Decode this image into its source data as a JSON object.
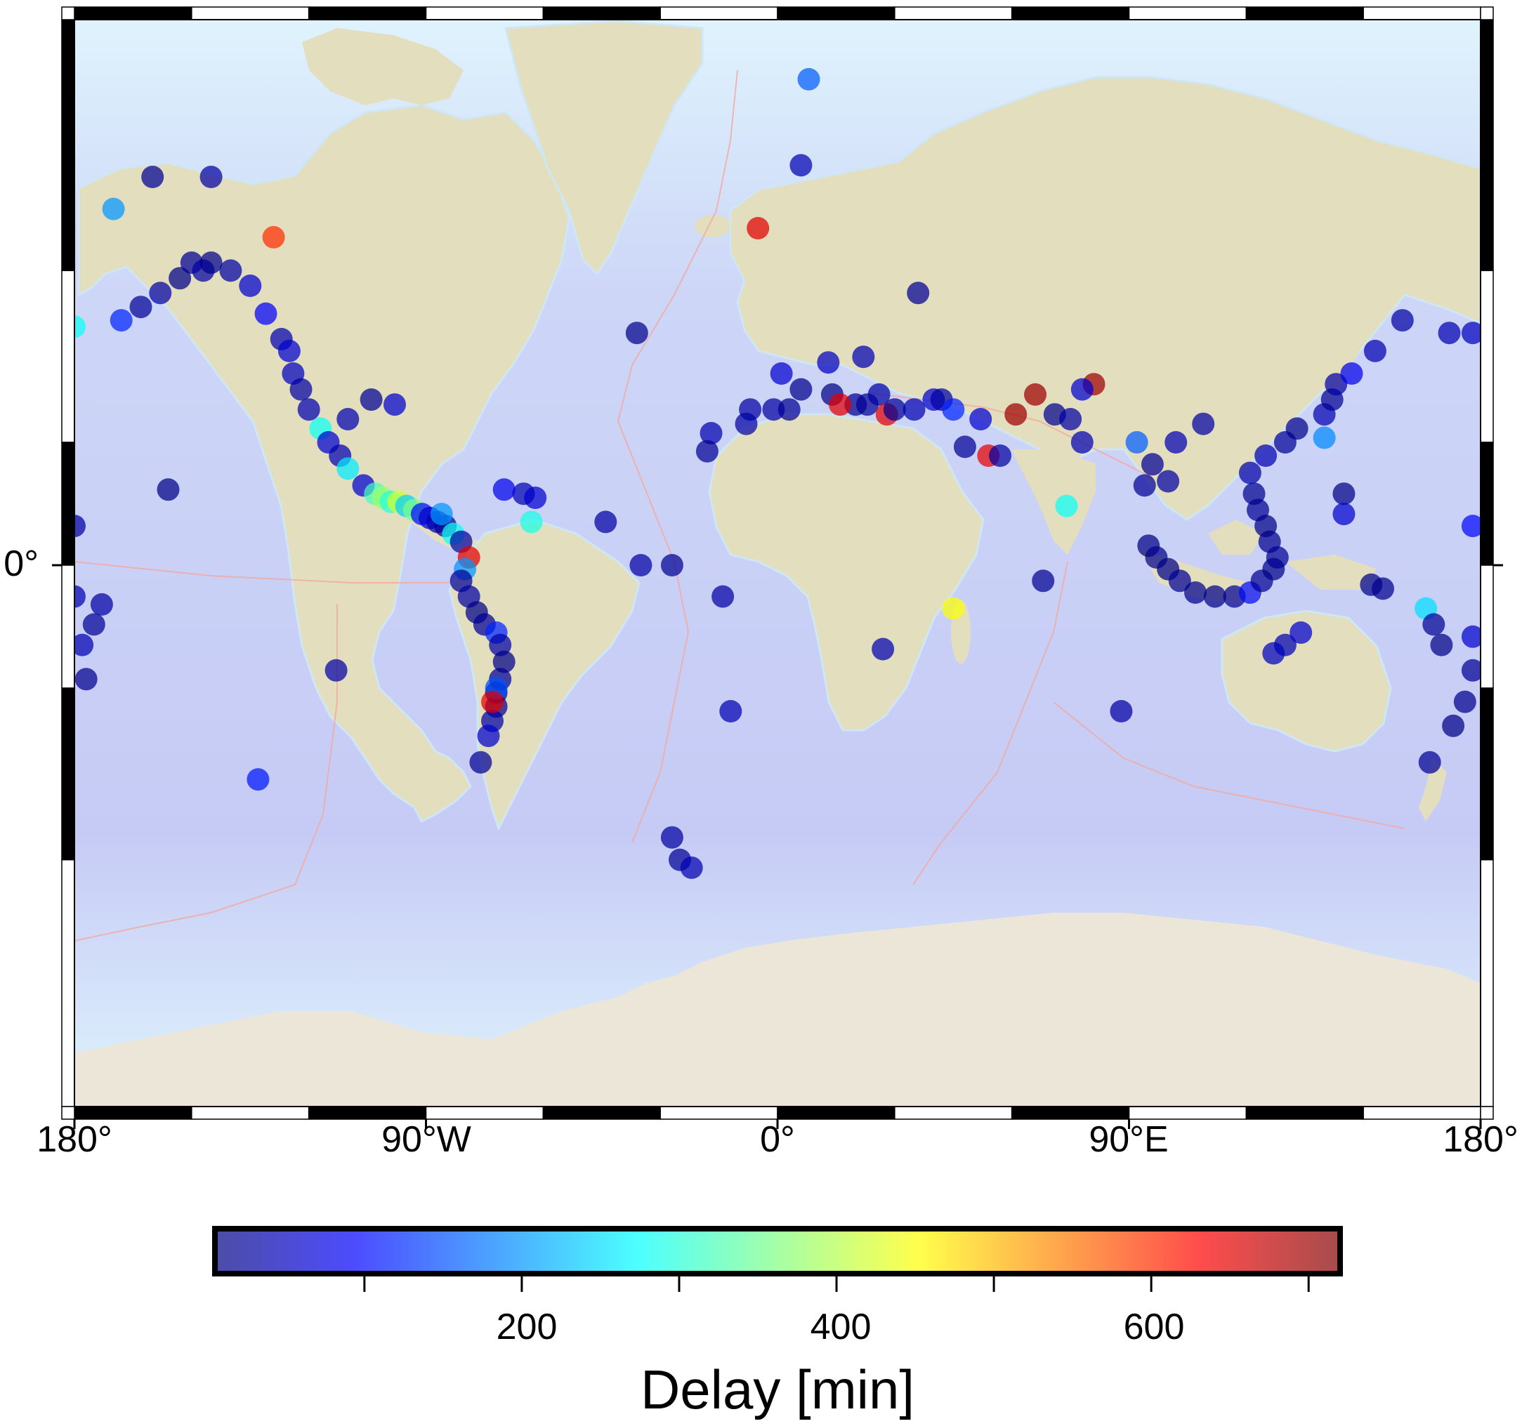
{
  "map": {
    "projection": "mercator",
    "lon_range": [
      -180,
      180
    ],
    "x_tick_labels": [
      "180°",
      "90°W",
      "0°",
      "90°E",
      "180°"
    ],
    "y_tick_labels": [
      "0°"
    ],
    "colors": {
      "ocean": "#c9cdf5",
      "shelf": "#d8eefb",
      "land": "#e3dfbe",
      "antarctica": "#ece6d8",
      "plate_boundary": "#f2a9a0",
      "frame": "#000000"
    }
  },
  "colorbar": {
    "title": "Delay [min]",
    "range": [
      5,
      720
    ],
    "labeled_ticks": [
      "200",
      "400",
      "600"
    ],
    "labeled_values": [
      200,
      400,
      600
    ],
    "minor_values": [
      100,
      300,
      500,
      700
    ],
    "cmap": "jet",
    "colors": [
      "#00007f",
      "#0000ff",
      "#007fff",
      "#00ffff",
      "#7fff7f",
      "#ffff00",
      "#ff7f00",
      "#ff0000",
      "#7f0000"
    ]
  },
  "chart_data": {
    "type": "scatter",
    "title": "",
    "x_unit": "longitude (degrees)",
    "y_unit": "latitude (degrees)",
    "color_value": "Delay [min]",
    "points": [
      {
        "lon": -168,
        "lat": 53,
        "delay": 120
      },
      {
        "lon": -163,
        "lat": 55,
        "delay": 20
      },
      {
        "lon": -158,
        "lat": 57,
        "delay": 30
      },
      {
        "lon": -153,
        "lat": 59,
        "delay": 10
      },
      {
        "lon": -150,
        "lat": 61,
        "delay": 20
      },
      {
        "lon": -147,
        "lat": 60,
        "delay": 30
      },
      {
        "lon": -145,
        "lat": 61,
        "delay": 15
      },
      {
        "lon": -140,
        "lat": 60,
        "delay": 30
      },
      {
        "lon": -135,
        "lat": 58,
        "delay": 60
      },
      {
        "lon": -131,
        "lat": 54,
        "delay": 90
      },
      {
        "lon": -127,
        "lat": 50,
        "delay": 40
      },
      {
        "lon": -125,
        "lat": 48,
        "delay": 60
      },
      {
        "lon": -124,
        "lat": 44,
        "delay": 50
      },
      {
        "lon": -122,
        "lat": 41,
        "delay": 30
      },
      {
        "lon": -120,
        "lat": 37,
        "delay": 40
      },
      {
        "lon": -117,
        "lat": 33,
        "delay": 280
      },
      {
        "lon": -115,
        "lat": 30,
        "delay": 60
      },
      {
        "lon": -112,
        "lat": 27,
        "delay": 40
      },
      {
        "lon": -110,
        "lat": 24,
        "delay": 260
      },
      {
        "lon": -106,
        "lat": 20,
        "delay": 60
      },
      {
        "lon": -103,
        "lat": 18,
        "delay": 320
      },
      {
        "lon": -101,
        "lat": 17,
        "delay": 380
      },
      {
        "lon": -99,
        "lat": 16,
        "delay": 300
      },
      {
        "lon": -97,
        "lat": 16,
        "delay": 420
      },
      {
        "lon": -95,
        "lat": 15,
        "delay": 240
      },
      {
        "lon": -93,
        "lat": 14,
        "delay": 360
      },
      {
        "lon": -91,
        "lat": 13,
        "delay": 100
      },
      {
        "lon": -89,
        "lat": 12,
        "delay": 60
      },
      {
        "lon": -87,
        "lat": 11,
        "delay": 40
      },
      {
        "lon": -85,
        "lat": 10,
        "delay": 20
      },
      {
        "lon": -83,
        "lat": 8,
        "delay": 280
      },
      {
        "lon": -81,
        "lat": 6,
        "delay": 30
      },
      {
        "lon": -79,
        "lat": 2,
        "delay": 650
      },
      {
        "lon": -80,
        "lat": -1,
        "delay": 200
      },
      {
        "lon": -81,
        "lat": -4,
        "delay": 20
      },
      {
        "lon": -79,
        "lat": -8,
        "delay": 30
      },
      {
        "lon": -77,
        "lat": -12,
        "delay": 10
      },
      {
        "lon": -75,
        "lat": -15,
        "delay": 20
      },
      {
        "lon": -72,
        "lat": -17,
        "delay": 120
      },
      {
        "lon": -71,
        "lat": -20,
        "delay": 30
      },
      {
        "lon": -70,
        "lat": -24,
        "delay": 10
      },
      {
        "lon": -71,
        "lat": -28,
        "delay": 20
      },
      {
        "lon": -72,
        "lat": -31,
        "delay": 15
      },
      {
        "lon": -72,
        "lat": -34,
        "delay": 20
      },
      {
        "lon": -73,
        "lat": -37,
        "delay": 30
      },
      {
        "lon": -74,
        "lat": -40,
        "delay": 60
      },
      {
        "lon": -76,
        "lat": -45,
        "delay": 20
      },
      {
        "lon": -113,
        "lat": -26,
        "delay": 30
      },
      {
        "lon": -133,
        "lat": -48,
        "delay": 110
      },
      {
        "lon": -156,
        "lat": 19,
        "delay": 10
      },
      {
        "lon": -110,
        "lat": 35,
        "delay": 40
      },
      {
        "lon": -98,
        "lat": 38,
        "delay": 60
      },
      {
        "lon": -104,
        "lat": 39,
        "delay": 20
      },
      {
        "lon": -65,
        "lat": 18,
        "delay": 40
      },
      {
        "lon": -62,
        "lat": 17,
        "delay": 60
      },
      {
        "lon": -70,
        "lat": 19,
        "delay": 80
      },
      {
        "lon": -63,
        "lat": 11,
        "delay": 290
      },
      {
        "lon": -44,
        "lat": 11,
        "delay": 30
      },
      {
        "lon": -35,
        "lat": 0,
        "delay": 30
      },
      {
        "lon": -27,
        "lat": 0,
        "delay": 20
      },
      {
        "lon": -14,
        "lat": -8,
        "delay": 30
      },
      {
        "lon": -12,
        "lat": -35,
        "delay": 40
      },
      {
        "lon": -27,
        "lat": -57,
        "delay": 30
      },
      {
        "lon": -25,
        "lat": -60,
        "delay": 20
      },
      {
        "lon": -22,
        "lat": -61,
        "delay": 40
      },
      {
        "lon": -36,
        "lat": 51,
        "delay": 15
      },
      {
        "lon": -5,
        "lat": 65,
        "delay": 650
      },
      {
        "lon": 6,
        "lat": 71,
        "delay": 40
      },
      {
        "lon": 8,
        "lat": 77,
        "delay": 160
      },
      {
        "lon": -170,
        "lat": 67,
        "delay": 200
      },
      {
        "lon": -180,
        "lat": 52,
        "delay": 280
      },
      {
        "lon": -160,
        "lat": 70,
        "delay": 20
      },
      {
        "lon": -145,
        "lat": 70,
        "delay": 30
      },
      {
        "lon": -129,
        "lat": 64,
        "delay": 600
      },
      {
        "lon": -1,
        "lat": 37,
        "delay": 30
      },
      {
        "lon": 3,
        "lat": 37,
        "delay": 20
      },
      {
        "lon": 6,
        "lat": 41,
        "delay": 15
      },
      {
        "lon": 14,
        "lat": 40,
        "delay": 10
      },
      {
        "lon": 20,
        "lat": 38,
        "delay": 15
      },
      {
        "lon": 23,
        "lat": 38,
        "delay": 20
      },
      {
        "lon": 26,
        "lat": 40,
        "delay": 30
      },
      {
        "lon": 28,
        "lat": 36,
        "delay": 650
      },
      {
        "lon": 30,
        "lat": 37,
        "delay": 20
      },
      {
        "lon": 35,
        "lat": 37,
        "delay": 40
      },
      {
        "lon": 40,
        "lat": 39,
        "delay": 60
      },
      {
        "lon": 42,
        "lat": 39,
        "delay": 30
      },
      {
        "lon": 45,
        "lat": 37,
        "delay": 120
      },
      {
        "lon": 48,
        "lat": 29,
        "delay": 20
      },
      {
        "lon": 54,
        "lat": 27,
        "delay": 650
      },
      {
        "lon": 57,
        "lat": 27,
        "delay": 30
      },
      {
        "lon": 71,
        "lat": 36,
        "delay": 15
      },
      {
        "lon": 75,
        "lat": 35,
        "delay": 30
      },
      {
        "lon": 78,
        "lat": 30,
        "delay": 40
      },
      {
        "lon": 81,
        "lat": 42,
        "delay": 700
      },
      {
        "lon": 78,
        "lat": 41,
        "delay": 60
      },
      {
        "lon": 92,
        "lat": 30,
        "delay": 160
      },
      {
        "lon": 102,
        "lat": 30,
        "delay": 40
      },
      {
        "lon": 96,
        "lat": 25,
        "delay": 20
      },
      {
        "lon": 100,
        "lat": 21,
        "delay": 30
      },
      {
        "lon": 94,
        "lat": 20,
        "delay": 20
      },
      {
        "lon": 95,
        "lat": 5,
        "delay": 10
      },
      {
        "lon": 97,
        "lat": 2,
        "delay": 15
      },
      {
        "lon": 100,
        "lat": -1,
        "delay": 10
      },
      {
        "lon": 103,
        "lat": -4,
        "delay": 20
      },
      {
        "lon": 107,
        "lat": -7,
        "delay": 15
      },
      {
        "lon": 112,
        "lat": -8,
        "delay": 10
      },
      {
        "lon": 117,
        "lat": -8,
        "delay": 20
      },
      {
        "lon": 121,
        "lat": -7,
        "delay": 100
      },
      {
        "lon": 124,
        "lat": -4,
        "delay": 20
      },
      {
        "lon": 127,
        "lat": -1,
        "delay": 10
      },
      {
        "lon": 128,
        "lat": 2,
        "delay": 20
      },
      {
        "lon": 126,
        "lat": 6,
        "delay": 15
      },
      {
        "lon": 125,
        "lat": 10,
        "delay": 10
      },
      {
        "lon": 123,
        "lat": 14,
        "delay": 20
      },
      {
        "lon": 122,
        "lat": 18,
        "delay": 15
      },
      {
        "lon": 121,
        "lat": 23,
        "delay": 30
      },
      {
        "lon": 125,
        "lat": 27,
        "delay": 40
      },
      {
        "lon": 130,
        "lat": 30,
        "delay": 20
      },
      {
        "lon": 133,
        "lat": 33,
        "delay": 15
      },
      {
        "lon": 140,
        "lat": 36,
        "delay": 40
      },
      {
        "lon": 142,
        "lat": 39,
        "delay": 20
      },
      {
        "lon": 143,
        "lat": 42,
        "delay": 30
      },
      {
        "lon": 147,
        "lat": 44,
        "delay": 80
      },
      {
        "lon": 153,
        "lat": 48,
        "delay": 40
      },
      {
        "lon": 160,
        "lat": 53,
        "delay": 30
      },
      {
        "lon": 145,
        "lat": 18,
        "delay": 10
      },
      {
        "lon": 145,
        "lat": 13,
        "delay": 60
      },
      {
        "lon": 140,
        "lat": 31,
        "delay": 190
      },
      {
        "lon": 152,
        "lat": -5,
        "delay": 10
      },
      {
        "lon": 155,
        "lat": -6,
        "delay": 15
      },
      {
        "lon": 166,
        "lat": -11,
        "delay": 250
      },
      {
        "lon": 168,
        "lat": -15,
        "delay": 20
      },
      {
        "lon": 170,
        "lat": -20,
        "delay": 10
      },
      {
        "lon": 178,
        "lat": -18,
        "delay": 60
      },
      {
        "lon": 178,
        "lat": -26,
        "delay": 20
      },
      {
        "lon": 176,
        "lat": -33,
        "delay": 15
      },
      {
        "lon": 173,
        "lat": -38,
        "delay": 10
      },
      {
        "lon": 167,
        "lat": -45,
        "delay": 20
      },
      {
        "lon": -178,
        "lat": -20,
        "delay": 40
      },
      {
        "lon": -175,
        "lat": -15,
        "delay": 20
      },
      {
        "lon": -173,
        "lat": -10,
        "delay": 30
      },
      {
        "lon": -177,
        "lat": -28,
        "delay": 15
      },
      {
        "lon": 130,
        "lat": -20,
        "delay": 40
      },
      {
        "lon": 127,
        "lat": -22,
        "delay": 50
      },
      {
        "lon": 134,
        "lat": -17,
        "delay": 60
      },
      {
        "lon": 88,
        "lat": -35,
        "delay": 30
      },
      {
        "lon": 68,
        "lat": -4,
        "delay": 20
      },
      {
        "lon": 61,
        "lat": 36,
        "delay": 700
      },
      {
        "lon": 74,
        "lat": 15,
        "delay": 280
      },
      {
        "lon": 45,
        "lat": -11,
        "delay": 450
      },
      {
        "lon": 27,
        "lat": -21,
        "delay": 40
      },
      {
        "lon": 36,
        "lat": 57,
        "delay": 20
      },
      {
        "lon": 22,
        "lat": 47,
        "delay": 40
      },
      {
        "lon": 13,
        "lat": 46,
        "delay": 50
      },
      {
        "lon": 1,
        "lat": 44,
        "delay": 60
      },
      {
        "lon": -7,
        "lat": 37,
        "delay": 30
      },
      {
        "lon": -17,
        "lat": 32,
        "delay": 40
      },
      {
        "lon": -18,
        "lat": 28,
        "delay": 20
      },
      {
        "lon": -8,
        "lat": 34,
        "delay": 30
      },
      {
        "lon": 16,
        "lat": 38,
        "delay": 650
      },
      {
        "lon": 52,
        "lat": 35,
        "delay": 60
      },
      {
        "lon": 66,
        "lat": 40,
        "delay": 700
      },
      {
        "lon": 178,
        "lat": 51,
        "delay": 50
      },
      {
        "lon": 172,
        "lat": 51,
        "delay": 40
      },
      {
        "lon": 109,
        "lat": 34,
        "delay": 30
      },
      {
        "lon": -180,
        "lat": -8,
        "delay": 40
      },
      {
        "lon": -180,
        "lat": 10,
        "delay": 30
      },
      {
        "lon": 178,
        "lat": 10,
        "delay": 100
      },
      {
        "lon": -72,
        "lat": -30,
        "delay": 150
      },
      {
        "lon": -73,
        "lat": -33,
        "delay": 650
      },
      {
        "lon": -86,
        "lat": 13,
        "delay": 200
      }
    ]
  }
}
